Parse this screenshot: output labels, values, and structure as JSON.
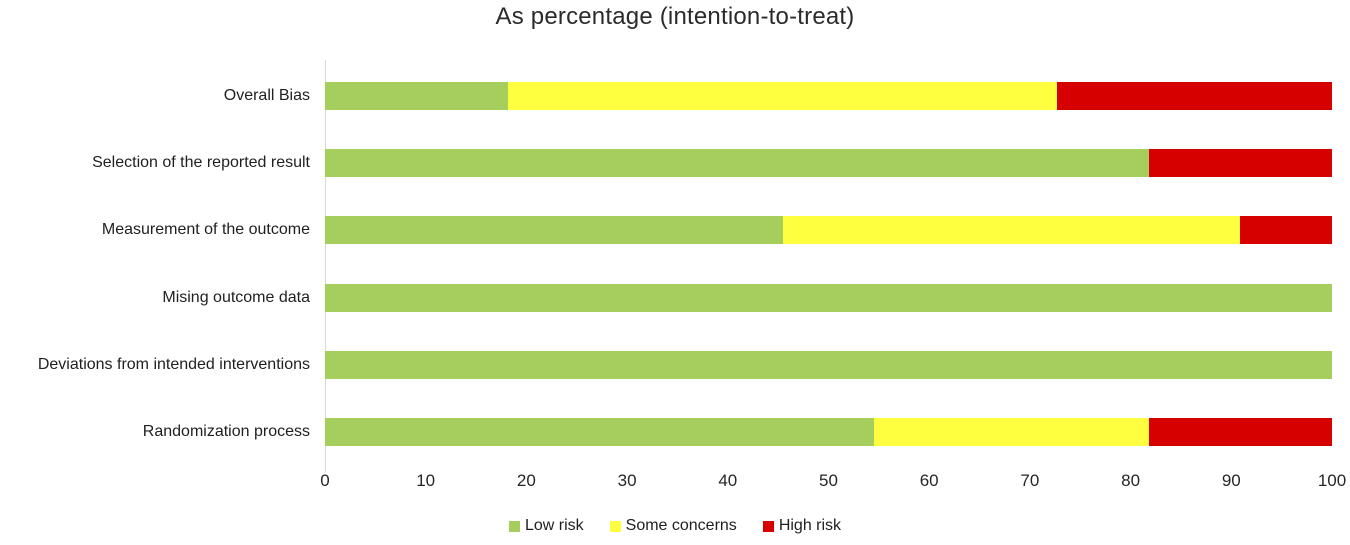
{
  "chart_data": {
    "type": "bar",
    "orientation": "horizontal",
    "stacked": true,
    "title": "As percentage (intention-to-treat)",
    "categories": [
      "Overall Bias",
      "Selection of the reported result",
      "Measurement of the outcome",
      "Mising outcome data",
      "Deviations from intended interventions",
      "Randomization process"
    ],
    "series": [
      {
        "name": "Low risk",
        "color": "#a5ce5c",
        "values": [
          18.18,
          81.82,
          45.45,
          100,
          100,
          54.55
        ]
      },
      {
        "name": "Some concerns",
        "color": "#feff3e",
        "values": [
          54.55,
          0,
          45.45,
          0,
          0,
          27.27
        ]
      },
      {
        "name": "High risk",
        "color": "#d60000",
        "values": [
          27.27,
          18.18,
          9.09,
          0,
          0,
          18.18
        ]
      }
    ],
    "xlim": [
      0,
      100
    ],
    "x_ticks": [
      0,
      10,
      20,
      30,
      40,
      50,
      60,
      70,
      80,
      90,
      100
    ],
    "legend_position": "bottom",
    "grid": false,
    "axis_line_color": "#d9d9d9"
  }
}
